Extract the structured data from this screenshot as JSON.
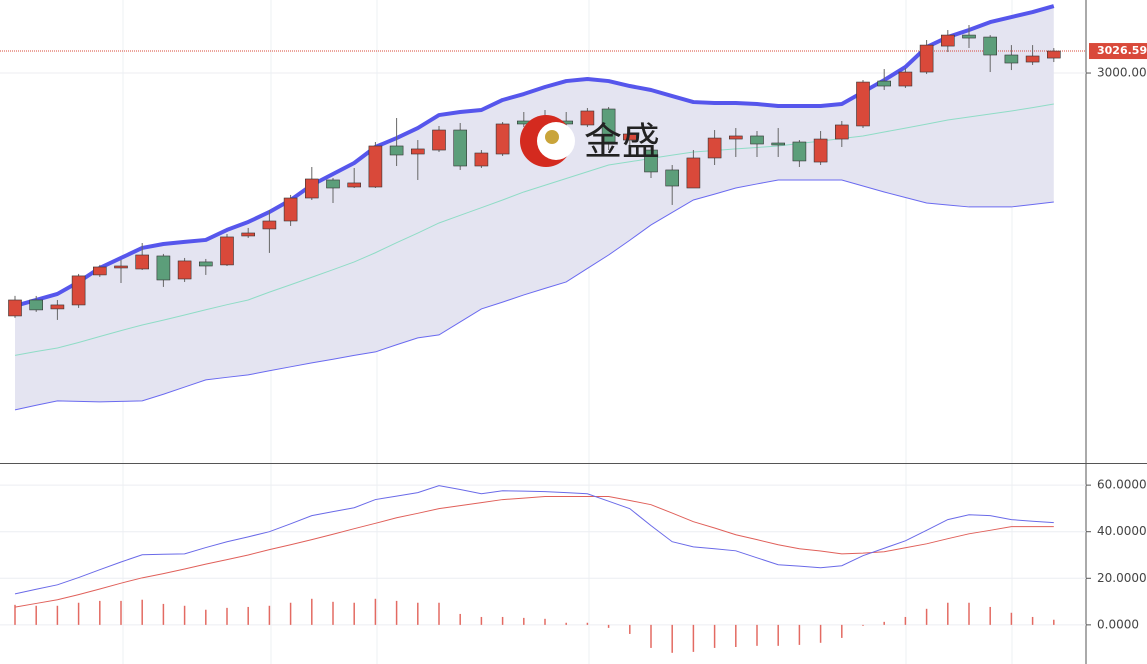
{
  "chart_data": [
    {
      "type": "candlestick",
      "open": [
        2706.3,
        2725.6,
        2714.8,
        2719.6,
        2755.9,
        2764.3,
        2763.1,
        2778.8,
        2751.0,
        2771.6,
        2768.0,
        2803.0,
        2811.5,
        2821.1,
        2848.9,
        2870.7,
        2862.2,
        2862.2,
        2911.8,
        2902.1,
        2906.9,
        2931.1,
        2887.6,
        2902.1,
        2942.0,
        2936.0,
        2942.0,
        2937.2,
        2956.5,
        2919.0,
        2906.9,
        2882.8,
        2861.0,
        2897.3,
        2920.2,
        2923.9,
        2915.4,
        2916.6,
        2892.4,
        2920.2,
        2936.0,
        2990.3,
        2984.3,
        3001.2,
        3032.6,
        3045.9,
        3043.5,
        3021.8,
        3013.3,
        3018.1
      ],
      "high": [
        2730.5,
        2730.5,
        2725.6,
        2757.1,
        2768.0,
        2774.0,
        2794.5,
        2781.3,
        2776.4,
        2775.2,
        2805.4,
        2812.7,
        2834.4,
        2852.6,
        2886.4,
        2873.1,
        2885.2,
        2916.6,
        2945.6,
        2919.0,
        2936.0,
        2939.6,
        2906.9,
        2940.8,
        2952.9,
        2955.3,
        2952.9,
        2957.7,
        2958.9,
        2933.5,
        2913.0,
        2888.8,
        2906.9,
        2931.1,
        2933.5,
        2929.9,
        2933.5,
        2919.0,
        2929.9,
        2942.0,
        2991.5,
        3004.8,
        3006.1,
        3039.9,
        3052.0,
        3058.0,
        3045.9,
        3033.8,
        3033.8,
        3030.2
      ],
      "low": [
        2703.9,
        2711.2,
        2701.5,
        2716.0,
        2753.5,
        2746.2,
        2761.9,
        2741.4,
        2747.4,
        2755.9,
        2766.7,
        2800.6,
        2782.5,
        2815.1,
        2846.5,
        2842.9,
        2861.0,
        2861.0,
        2887.6,
        2870.7,
        2904.5,
        2882.8,
        2885.2,
        2899.7,
        2934.7,
        2931.1,
        2931.1,
        2934.7,
        2906.9,
        2913.0,
        2873.1,
        2840.5,
        2861.0,
        2888.8,
        2898.5,
        2898.5,
        2898.5,
        2886.4,
        2888.8,
        2910.6,
        2933.5,
        2979.5,
        2981.9,
        2998.8,
        3025.4,
        3030.2,
        3001.2,
        3003.6,
        3009.7,
        3013.3
      ],
      "close": [
        2725.6,
        2713.6,
        2719.6,
        2754.7,
        2765.5,
        2766.7,
        2780.0,
        2749.8,
        2772.8,
        2766.7,
        2801.8,
        2806.6,
        2821.1,
        2848.9,
        2871.9,
        2861.0,
        2867.1,
        2911.8,
        2900.9,
        2908.2,
        2931.1,
        2887.6,
        2903.3,
        2938.4,
        2938.4,
        2946.8,
        2938.4,
        2954.1,
        2916.6,
        2926.3,
        2880.4,
        2863.4,
        2897.3,
        2921.4,
        2923.9,
        2914.2,
        2913.0,
        2893.7,
        2920.2,
        2937.2,
        2989.1,
        2984.3,
        3001.2,
        3033.8,
        3045.9,
        3042.3,
        3021.8,
        3012.1,
        3020.6,
        3026.59
      ],
      "up_color": "#d9493a",
      "down_color": "#5c9e7a",
      "bands": {
        "upper": [
          2718.4,
          2725.6,
          2732.9,
          2747.4,
          2764.3,
          2776.4,
          2788.5,
          2793.3,
          2795.8,
          2798.2,
          2810.3,
          2819.9,
          2832.0,
          2846.5,
          2864.6,
          2877.9,
          2891.2,
          2910.6,
          2921.4,
          2933.5,
          2949.2,
          2952.9,
          2955.3,
          2967.4,
          2974.6,
          2983.1,
          2990.3,
          2992.8,
          2990.3,
          2984.3,
          2979.5,
          2972.2,
          2964.9,
          2963.7,
          2963.7,
          2962.5,
          2960.1,
          2960.1,
          2960.1,
          2962.5,
          2977.0,
          2991.5,
          3007.3,
          3031.4,
          3043.5,
          3052.0,
          3061.6,
          3067.7,
          3073.7,
          3081.0
        ],
        "middle": [
          2658.6,
          2663.3,
          2667.6,
          2674.2,
          2681.4,
          2688.6,
          2695.4,
          2701.2,
          2707.5,
          2713.8,
          2719.9,
          2725.6,
          2735.1,
          2744.0,
          2753.1,
          2762.2,
          2771.6,
          2782.7,
          2794.9,
          2806.5,
          2818.7,
          2828.0,
          2837.2,
          2846.5,
          2856.2,
          2864.3,
          2872.5,
          2880.6,
          2888.8,
          2892.7,
          2896.8,
          2900.7,
          2904.5,
          2906.3,
          2908.3,
          2910.0,
          2911.8,
          2914.8,
          2917.7,
          2920.8,
          2923.9,
          2928.7,
          2933.4,
          2938.2,
          2943.2,
          2946.8,
          2950.5,
          2954.1,
          2958.2,
          2962.5
        ],
        "lower": [
          2592.7,
          2598.3,
          2603.6,
          2603.0,
          2602.4,
          2603.0,
          2603.6,
          2611.6,
          2620.3,
          2629.0,
          2632.1,
          2635.0,
          2640.0,
          2644.8,
          2649.5,
          2654.0,
          2658.6,
          2662.8,
          2671.5,
          2679.8,
          2683.4,
          2699.1,
          2714.8,
          2723.0,
          2731.7,
          2739.6,
          2747.4,
          2763.7,
          2780.0,
          2797.8,
          2816.3,
          2831.4,
          2846.5,
          2853.6,
          2861.0,
          2865.9,
          2870.7,
          2870.7,
          2870.7,
          2870.7,
          2863.4,
          2856.2,
          2849.5,
          2842.9,
          2840.5,
          2838.1,
          2838.1,
          2838.1,
          2841.0,
          2844.1
        ],
        "upper_color": "#5656ec",
        "middle_color": "#8fdcc6",
        "lower_color": "#6a6af0",
        "fill": "#e4e4f1"
      },
      "ylim": [
        2528.5,
        3088.3
      ],
      "yticks": [
        {
          "value": 3000,
          "label": "3000.00"
        }
      ],
      "price_line": 3026.59,
      "price_line_color": "#d9493a",
      "watermark": "金盛"
    },
    {
      "type": "macd",
      "dif": [
        13.3,
        15.3,
        17.2,
        20.3,
        23.7,
        27.0,
        30.1,
        30.3,
        30.5,
        33.2,
        35.7,
        37.8,
        40.0,
        43.4,
        46.9,
        48.6,
        50.3,
        53.8,
        55.3,
        56.8,
        59.8,
        58.1,
        56.3,
        57.6,
        57.4,
        57.2,
        56.8,
        56.3,
        53.1,
        49.9,
        42.6,
        35.7,
        33.5,
        32.7,
        31.8,
        28.8,
        25.8,
        25.2,
        24.5,
        25.4,
        29.7,
        32.9,
        36.1,
        40.6,
        45.2,
        47.3,
        46.9,
        45.2,
        44.5,
        43.9
      ],
      "dea": [
        7.6,
        9.2,
        10.8,
        13.0,
        15.4,
        17.9,
        20.2,
        22.0,
        24.0,
        26.1,
        28.0,
        30.0,
        32.3,
        34.4,
        36.6,
        38.9,
        41.3,
        43.6,
        46.0,
        47.9,
        49.9,
        51.2,
        52.5,
        53.8,
        54.4,
        55.1,
        55.1,
        55.1,
        55.1,
        53.4,
        51.6,
        48.0,
        44.3,
        41.6,
        38.7,
        36.6,
        34.4,
        32.7,
        31.7,
        30.5,
        30.8,
        31.4,
        33.1,
        34.8,
        37.0,
        39.1,
        40.6,
        42.2,
        42.2,
        42.2
      ],
      "hist": [
        8.6,
        8.2,
        8.2,
        9.5,
        10.3,
        10.3,
        10.8,
        9.0,
        8.2,
        6.5,
        7.3,
        7.7,
        8.2,
        9.5,
        11.2,
        9.9,
        9.5,
        11.2,
        10.3,
        9.5,
        9.5,
        4.7,
        3.4,
        3.4,
        3.0,
        2.6,
        0.9,
        0.9,
        -1.3,
        -3.9,
        -9.9,
        -12.0,
        -11.6,
        -9.9,
        -9.5,
        -9.0,
        -9.0,
        -8.6,
        -7.7,
        -5.6,
        -0.4,
        1.3,
        3.4,
        6.9,
        9.5,
        9.5,
        7.7,
        5.2,
        3.4,
        2.2
      ],
      "dif_color": "#6a6ae8",
      "dea_color": "#e0605a",
      "hist_color": "#e36a62",
      "ylim": [
        -16.8,
        69.5
      ],
      "yticks": [
        {
          "value": 60,
          "label": "60.0000"
        },
        {
          "value": 40,
          "label": "40.0000"
        },
        {
          "value": 20,
          "label": "20.0000"
        },
        {
          "value": 0,
          "label": "0.0000"
        }
      ],
      "grid": true
    }
  ]
}
